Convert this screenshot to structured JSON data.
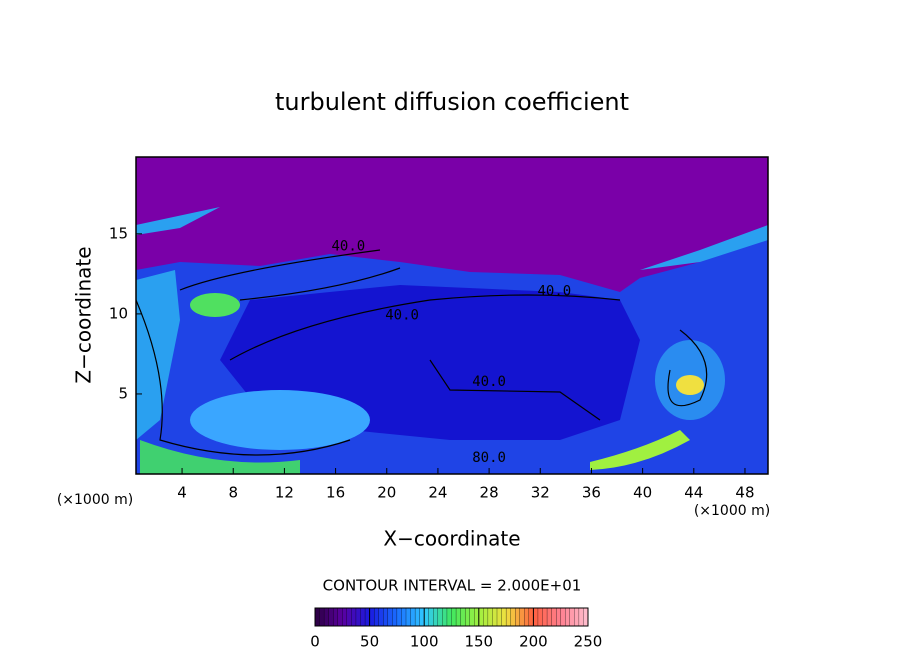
{
  "chart_data": {
    "type": "contour",
    "title": "turbulent diffusion coefficient",
    "xlabel": "X−coordinate",
    "ylabel": "Z−coordinate",
    "xunit": "(×1000 m)",
    "yunit": "(×1000 m)",
    "xlim": [
      0.4,
      49.8
    ],
    "ylim": [
      0,
      19.8
    ],
    "xticks": [
      4,
      8,
      12,
      16,
      20,
      24,
      28,
      32,
      36,
      40,
      44,
      48
    ],
    "yticks": [
      5,
      10,
      15
    ],
    "contour_labels": [
      {
        "value": 40,
        "label": "40.0",
        "x": 17,
        "z": 14.2
      },
      {
        "value": 40,
        "label": "40.0",
        "x": 33.1,
        "z": 11.4
      },
      {
        "value": 40,
        "label": "40.0",
        "x": 21.2,
        "z": 9.9
      },
      {
        "value": 40,
        "label": "40.0",
        "x": 28,
        "z": 5.75
      },
      {
        "value": 80,
        "label": "80.0",
        "x": 28,
        "z": 1.0
      }
    ],
    "contour_interval": "CONTOUR INTERVAL = 2.000E+01",
    "colorbar": {
      "clim": [
        0,
        250
      ],
      "ticks": [
        0,
        50,
        100,
        150,
        200,
        250
      ],
      "colors": [
        "#2a0040",
        "#5a00a0",
        "#1a1ae0",
        "#1a6cff",
        "#30c8ff",
        "#40e860",
        "#a0f040",
        "#f0e040",
        "#ff6040",
        "#ff8090",
        "#ffc0d0"
      ]
    }
  }
}
